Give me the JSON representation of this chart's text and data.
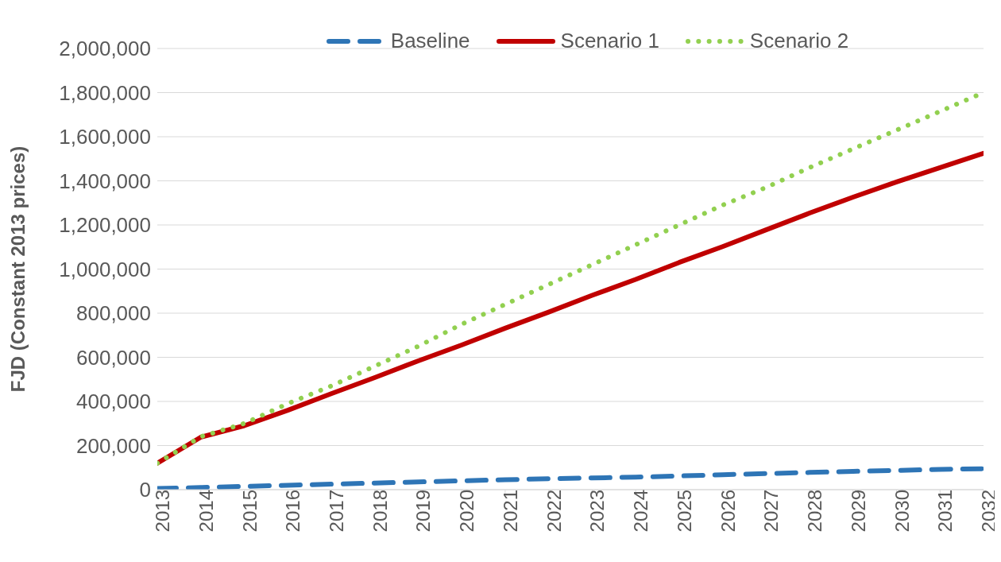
{
  "chart_data": {
    "type": "line",
    "ylabel": "FJD (Constant 2013 prices)",
    "categories": [
      "2013",
      "2014",
      "2015",
      "2016",
      "2017",
      "2018",
      "2019",
      "2020",
      "2021",
      "2022",
      "2023",
      "2024",
      "2025",
      "2026",
      "2027",
      "2028",
      "2029",
      "2030",
      "2031",
      "2032"
    ],
    "series": [
      {
        "name": "Baseline",
        "color": "#2e75b6",
        "line_style": "dashed",
        "values": [
          5000,
          10000,
          15000,
          20000,
          25000,
          30000,
          35000,
          40000,
          45000,
          50000,
          53000,
          57000,
          62000,
          68000,
          73000,
          78000,
          83000,
          87000,
          92000,
          95000
        ]
      },
      {
        "name": "Scenario 1",
        "color": "#c00000",
        "line_style": "solid",
        "values": [
          120000,
          238000,
          290000,
          360000,
          435000,
          508000,
          584000,
          656000,
          732000,
          805000,
          881000,
          953000,
          1030000,
          1102000,
          1178000,
          1254000,
          1326000,
          1395000,
          1460000,
          1525000
        ]
      },
      {
        "name": "Scenario 2",
        "color": "#92d050",
        "line_style": "dotted",
        "values": [
          120000,
          240000,
          300000,
          390000,
          470000,
          560000,
          650000,
          750000,
          840000,
          930000,
          1020000,
          1110000,
          1200000,
          1290000,
          1370000,
          1460000,
          1545000,
          1630000,
          1715000,
          1800000
        ]
      }
    ],
    "ylim": [
      0,
      2000000
    ],
    "yticks": [
      0,
      {
        "value": 200000,
        "label": "200,000"
      },
      {
        "value": 400000,
        "label": "400,000"
      },
      {
        "value": 600000,
        "label": "600,000"
      },
      {
        "value": 800000,
        "label": "800,000"
      },
      {
        "value": 1000000,
        "label": "1,000,000"
      },
      {
        "value": 1200000,
        "label": "1,200,000"
      },
      {
        "value": 1400000,
        "label": "1,400,000"
      },
      {
        "value": 1600000,
        "label": "1,600,000"
      },
      {
        "value": 1800000,
        "label": "1,800,000"
      },
      {
        "value": 2000000,
        "label": "2,000,000"
      }
    ],
    "grid": "y",
    "legend": "top",
    "marker": "none"
  }
}
